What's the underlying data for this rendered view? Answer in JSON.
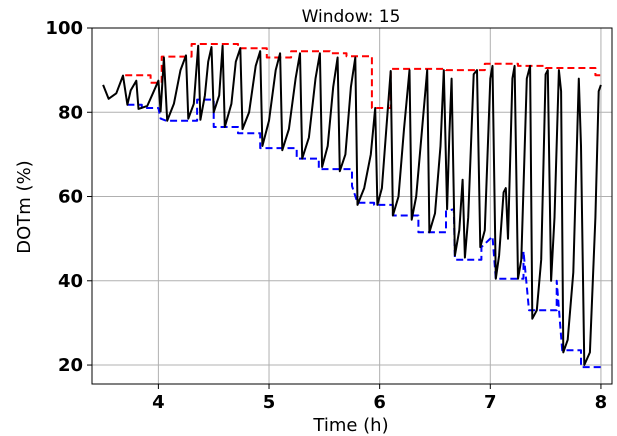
{
  "chart_data": {
    "type": "line",
    "title": "Window: 15",
    "xlabel": "Time (h)",
    "ylabel": "DOTm (%)",
    "xlim": [
      3.4,
      8.1
    ],
    "ylim": [
      15.5,
      100
    ],
    "xticks": [
      4,
      5,
      6,
      7,
      8
    ],
    "yticks": [
      20,
      40,
      60,
      80,
      100
    ],
    "grid": true,
    "series": [
      {
        "style": "solid",
        "color": "#000000",
        "points": [
          [
            3.5,
            86.5
          ],
          [
            3.55,
            83.2
          ],
          [
            3.62,
            84.5
          ],
          [
            3.68,
            88.7
          ],
          [
            3.72,
            81.8
          ],
          [
            3.75,
            85.2
          ],
          [
            3.8,
            87.5
          ],
          [
            3.82,
            80.8
          ],
          [
            3.9,
            81.5
          ],
          [
            3.95,
            84.5
          ],
          [
            4.0,
            87.5
          ],
          [
            4.02,
            80.2
          ],
          [
            4.05,
            93.0
          ],
          [
            4.08,
            78.0
          ],
          [
            4.14,
            82.0
          ],
          [
            4.2,
            90.0
          ],
          [
            4.25,
            93.5
          ],
          [
            4.27,
            78.5
          ],
          [
            4.32,
            82.0
          ],
          [
            4.36,
            95.8
          ],
          [
            4.38,
            78.2
          ],
          [
            4.42,
            84.0
          ],
          [
            4.45,
            92.0
          ],
          [
            4.48,
            95.5
          ],
          [
            4.5,
            80.0
          ],
          [
            4.55,
            84.0
          ],
          [
            4.58,
            95.8
          ],
          [
            4.6,
            76.5
          ],
          [
            4.66,
            82.0
          ],
          [
            4.7,
            92.0
          ],
          [
            4.74,
            95.2
          ],
          [
            4.76,
            76.0
          ],
          [
            4.82,
            80.0
          ],
          [
            4.88,
            91.0
          ],
          [
            4.92,
            94.5
          ],
          [
            4.94,
            72.0
          ],
          [
            5.0,
            78.0
          ],
          [
            5.06,
            90.0
          ],
          [
            5.1,
            94.0
          ],
          [
            5.12,
            71.0
          ],
          [
            5.18,
            76.0
          ],
          [
            5.24,
            88.0
          ],
          [
            5.28,
            94.0
          ],
          [
            5.3,
            69.0
          ],
          [
            5.36,
            74.0
          ],
          [
            5.42,
            88.0
          ],
          [
            5.46,
            94.0
          ],
          [
            5.48,
            67.0
          ],
          [
            5.53,
            72.0
          ],
          [
            5.58,
            86.0
          ],
          [
            5.62,
            93.0
          ],
          [
            5.64,
            66.0
          ],
          [
            5.69,
            70.0
          ],
          [
            5.74,
            86.0
          ],
          [
            5.78,
            93.0
          ],
          [
            5.8,
            58.0
          ],
          [
            5.86,
            62.0
          ],
          [
            5.92,
            70.0
          ],
          [
            5.96,
            81.0
          ],
          [
            5.98,
            58.0
          ],
          [
            6.02,
            62.0
          ],
          [
            6.06,
            76.0
          ],
          [
            6.1,
            89.8
          ],
          [
            6.12,
            55.5
          ],
          [
            6.17,
            60.0
          ],
          [
            6.22,
            76.0
          ],
          [
            6.27,
            90.0
          ],
          [
            6.29,
            54.5
          ],
          [
            6.33,
            60.0
          ],
          [
            6.37,
            72.0
          ],
          [
            6.43,
            90.0
          ],
          [
            6.45,
            51.5
          ],
          [
            6.5,
            56.0
          ],
          [
            6.55,
            72.0
          ],
          [
            6.58,
            90.0
          ],
          [
            6.61,
            57.0
          ],
          [
            6.63,
            75.0
          ],
          [
            6.65,
            88.0
          ],
          [
            6.68,
            46.0
          ],
          [
            6.72,
            52.0
          ],
          [
            6.75,
            64.0
          ],
          [
            6.77,
            45.5
          ],
          [
            6.8,
            55.0
          ],
          [
            6.85,
            89.0
          ],
          [
            6.88,
            90.0
          ],
          [
            6.91,
            48.0
          ],
          [
            6.95,
            52.0
          ],
          [
            7.0,
            88.0
          ],
          [
            7.02,
            91.0
          ],
          [
            7.05,
            40.5
          ],
          [
            7.08,
            46.0
          ],
          [
            7.12,
            61.0
          ],
          [
            7.14,
            62.0
          ],
          [
            7.16,
            50.0
          ],
          [
            7.2,
            88.0
          ],
          [
            7.22,
            91.0
          ],
          [
            7.25,
            40.5
          ],
          [
            7.28,
            45.0
          ],
          [
            7.33,
            88.0
          ],
          [
            7.36,
            91.0
          ],
          [
            7.38,
            31.0
          ],
          [
            7.42,
            33.0
          ],
          [
            7.46,
            45.0
          ],
          [
            7.5,
            89.0
          ],
          [
            7.52,
            90.0
          ],
          [
            7.55,
            40.0
          ],
          [
            7.58,
            55.0
          ],
          [
            7.62,
            90.0
          ],
          [
            7.64,
            85.0
          ],
          [
            7.66,
            23.0
          ],
          [
            7.7,
            26.0
          ],
          [
            7.75,
            42.0
          ],
          [
            7.8,
            88.0
          ],
          [
            7.82,
            72.0
          ],
          [
            7.85,
            20.0
          ],
          [
            7.9,
            23.0
          ],
          [
            7.95,
            55.0
          ],
          [
            7.98,
            85.0
          ],
          [
            8.0,
            86.5
          ]
        ]
      },
      {
        "style": "dashed",
        "color": "#ff0000",
        "points": [
          [
            3.7,
            88.8
          ],
          [
            3.93,
            88.8
          ],
          [
            3.93,
            87.0
          ],
          [
            4.03,
            87.0
          ],
          [
            4.03,
            93.2
          ],
          [
            4.3,
            93.2
          ],
          [
            4.3,
            96.2
          ],
          [
            4.72,
            96.2
          ],
          [
            4.72,
            95.2
          ],
          [
            4.98,
            95.2
          ],
          [
            4.98,
            93.0
          ],
          [
            5.2,
            93.0
          ],
          [
            5.2,
            94.5
          ],
          [
            5.55,
            94.5
          ],
          [
            5.55,
            94.0
          ],
          [
            5.7,
            94.0
          ],
          [
            5.7,
            93.3
          ],
          [
            5.93,
            93.3
          ],
          [
            5.93,
            81.0
          ],
          [
            6.1,
            81.0
          ],
          [
            6.1,
            90.3
          ],
          [
            6.6,
            90.3
          ],
          [
            6.6,
            90.0
          ],
          [
            6.95,
            90.0
          ],
          [
            6.95,
            91.5
          ],
          [
            7.25,
            91.5
          ],
          [
            7.25,
            91.0
          ],
          [
            7.5,
            91.0
          ],
          [
            7.5,
            90.5
          ],
          [
            7.95,
            90.5
          ],
          [
            7.95,
            88.8
          ],
          [
            8.0,
            88.8
          ]
        ]
      },
      {
        "style": "dashed",
        "color": "#0000ff",
        "points": [
          [
            3.72,
            81.8
          ],
          [
            3.85,
            81.8
          ],
          [
            3.85,
            81.0
          ],
          [
            4.0,
            81.0
          ],
          [
            4.02,
            78.5
          ],
          [
            4.07,
            78.0
          ],
          [
            4.35,
            78.0
          ],
          [
            4.35,
            83.0
          ],
          [
            4.5,
            83.0
          ],
          [
            4.5,
            76.5
          ],
          [
            4.72,
            76.5
          ],
          [
            4.72,
            75.0
          ],
          [
            4.92,
            75.0
          ],
          [
            4.92,
            71.5
          ],
          [
            5.25,
            71.5
          ],
          [
            5.25,
            69.0
          ],
          [
            5.45,
            69.0
          ],
          [
            5.45,
            66.5
          ],
          [
            5.75,
            66.5
          ],
          [
            5.75,
            62.5
          ],
          [
            5.8,
            58.5
          ],
          [
            5.95,
            58.5
          ],
          [
            5.95,
            58.0
          ],
          [
            6.12,
            58.0
          ],
          [
            6.12,
            55.5
          ],
          [
            6.35,
            55.5
          ],
          [
            6.35,
            51.5
          ],
          [
            6.6,
            51.5
          ],
          [
            6.6,
            56.5
          ],
          [
            6.67,
            57.0
          ],
          [
            6.68,
            45.0
          ],
          [
            6.92,
            45.0
          ],
          [
            6.92,
            48.0
          ],
          [
            7.02,
            50.5
          ],
          [
            7.05,
            40.5
          ],
          [
            7.3,
            40.5
          ],
          [
            7.3,
            47.0
          ],
          [
            7.35,
            33.0
          ],
          [
            7.6,
            33.0
          ],
          [
            7.6,
            40.0
          ],
          [
            7.65,
            23.5
          ],
          [
            7.82,
            23.5
          ],
          [
            7.82,
            19.5
          ],
          [
            8.0,
            19.5
          ]
        ]
      }
    ]
  }
}
